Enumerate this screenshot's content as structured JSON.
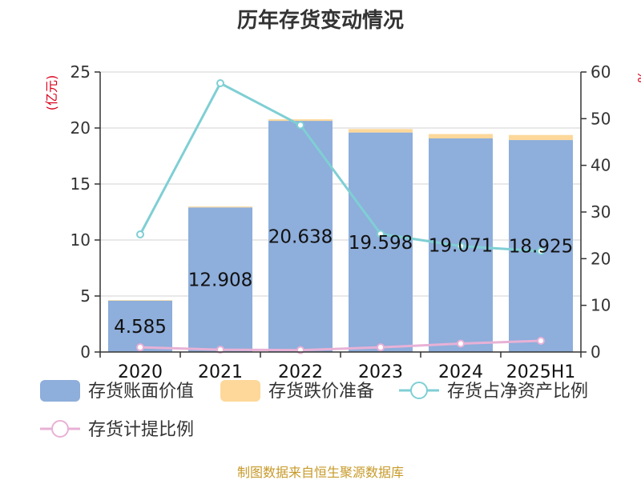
{
  "chart_data": {
    "type": "bar",
    "title": "历年存货变动情况",
    "categories": [
      "2020",
      "2021",
      "2022",
      "2023",
      "2024",
      "2025H1"
    ],
    "y_left": {
      "unit_label": "(亿元)",
      "ylim": [
        0,
        25
      ],
      "ticks": [
        "0",
        "5",
        "10",
        "15",
        "20",
        "25"
      ]
    },
    "y_right": {
      "unit_label": "%",
      "ylim": [
        0,
        60
      ],
      "ticks": [
        "0",
        "10",
        "20",
        "30",
        "40",
        "50",
        "60"
      ]
    },
    "series": [
      {
        "name": "存货账面价值",
        "type": "bar",
        "axis": "left",
        "stack": "inv",
        "values": [
          4.585,
          12.908,
          20.638,
          19.598,
          19.071,
          18.925
        ],
        "labels": [
          "4.585",
          "12.908",
          "20.638",
          "19.598",
          "19.071",
          "18.925"
        ]
      },
      {
        "name": "存货跌价准备",
        "type": "bar",
        "axis": "left",
        "stack": "inv",
        "values": [
          0.05,
          0.08,
          0.14,
          0.31,
          0.39,
          0.45
        ]
      },
      {
        "name": "存货占净资产比例",
        "type": "line",
        "axis": "right",
        "values": [
          25.2,
          57.6,
          48.6,
          25.3,
          22.7,
          21.6
        ]
      },
      {
        "name": "存货计提比例",
        "type": "line",
        "axis": "right",
        "values": [
          1.0,
          0.5,
          0.4,
          1.0,
          1.8,
          2.4
        ]
      }
    ],
    "colors": {
      "book_value": "#8eaedb",
      "impairment": "#fdd89a",
      "net_asset_ratio": "#7fcfd4",
      "provision_ratio": "#e8b1d6",
      "grid": "#d3d3d3",
      "axis": "#333333"
    },
    "grid": true,
    "legend_position": "bottom",
    "source": "制图数据来自恒生聚源数据库"
  }
}
